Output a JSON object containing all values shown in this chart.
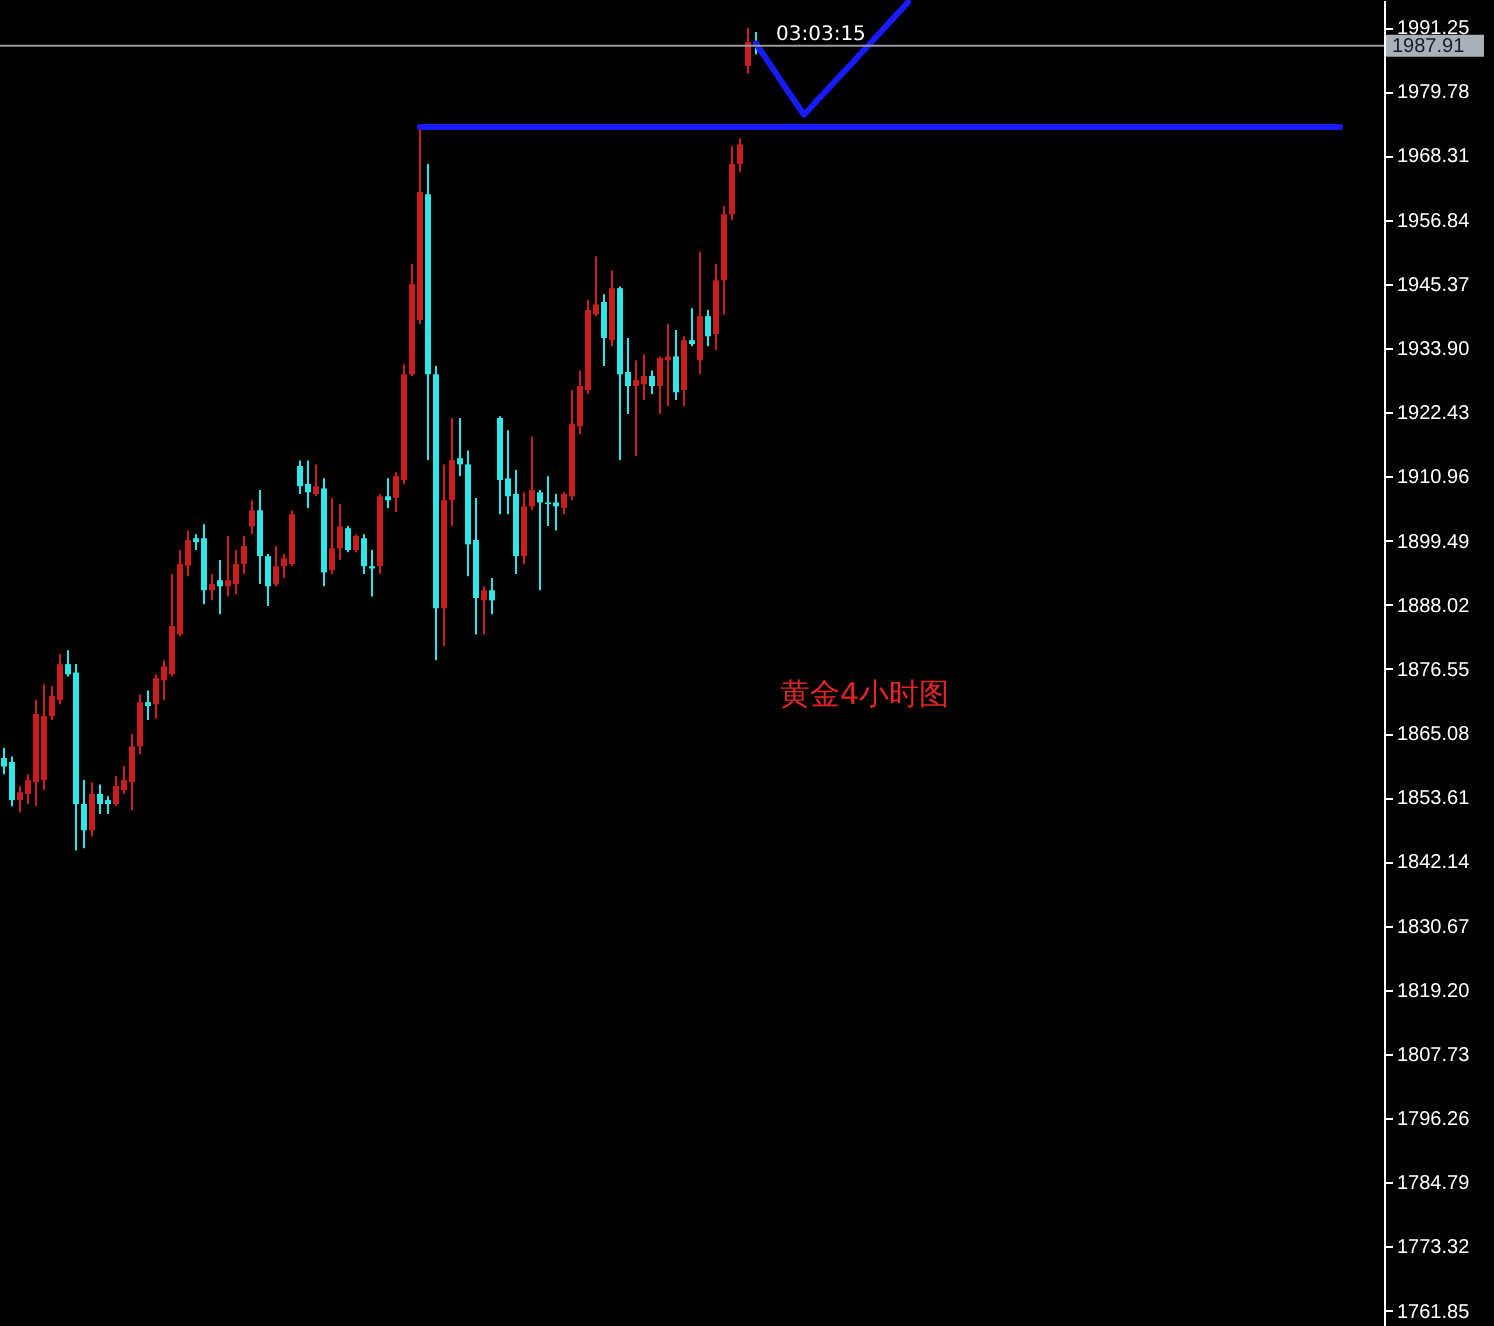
{
  "chart_data": {
    "type": "candlestick",
    "categories": [
      null,
      null,
      null,
      null,
      null,
      null,
      null,
      null,
      null,
      null,
      null,
      null,
      null,
      null,
      null,
      null,
      null,
      null,
      null,
      null,
      null,
      null,
      null,
      null,
      null,
      null,
      null,
      null,
      null,
      null,
      null,
      null,
      null,
      null,
      null,
      null,
      null,
      null,
      null,
      null,
      null,
      null,
      null,
      null,
      null,
      null,
      null,
      null,
      null,
      null,
      null,
      null,
      null,
      null,
      null,
      null,
      null,
      null,
      null,
      null,
      null,
      null,
      null,
      null,
      null,
      null,
      null,
      null,
      null,
      null,
      null,
      null,
      null,
      null,
      null,
      null,
      null,
      null,
      null,
      null,
      null,
      null,
      null,
      null,
      null,
      null,
      null,
      null,
      null,
      null,
      null,
      null,
      null,
      null,
      null,
      null,
      null,
      null,
      null,
      null,
      null,
      null,
      null,
      null,
      null,
      null,
      null,
      null,
      null,
      null,
      null,
      null,
      null,
      null,
      null,
      null,
      null,
      null,
      null,
      null,
      null,
      null,
      null,
      null,
      null,
      null,
      null,
      null,
      null,
      null,
      null,
      null,
      null,
      null,
      null,
      null,
      null,
      null,
      null,
      null,
      null,
      null,
      null,
      null,
      null,
      null,
      null,
      null,
      null,
      null,
      null,
      null,
      null,
      null,
      null,
      null,
      null,
      null,
      null,
      null,
      null,
      null,
      null,
      null,
      null,
      null,
      null,
      null,
      null,
      null,
      null,
      null,
      null
    ],
    "series": [
      {
        "ohlc": [
          [
            1860.6,
            1862.4,
            1857.7,
            1859.1
          ],
          [
            1859.9,
            1860.9,
            1852.0,
            1853.1
          ],
          [
            1853.1,
            1855.6,
            1850.9,
            1854.5
          ],
          [
            1854.2,
            1857.7,
            1852.4,
            1856.7
          ],
          [
            1856.3,
            1871.0,
            1852.0,
            1868.5
          ],
          [
            1856.7,
            1873.8,
            1854.9,
            1868.1
          ],
          [
            1868.1,
            1873.5,
            1867.4,
            1871.7
          ],
          [
            1871.0,
            1879.2,
            1870.2,
            1877.4
          ],
          [
            1877.4,
            1879.9,
            1875.2,
            1875.6
          ],
          [
            1875.9,
            1877.4,
            1844.1,
            1852.4
          ],
          [
            1852.4,
            1856.7,
            1844.5,
            1847.7
          ],
          [
            1847.7,
            1856.3,
            1846.6,
            1854.2
          ],
          [
            1854.2,
            1855.9,
            1850.6,
            1852.4
          ],
          [
            1853.1,
            1853.8,
            1850.6,
            1852.4
          ],
          [
            1852.4,
            1857.4,
            1852.0,
            1855.6
          ],
          [
            1854.9,
            1859.2,
            1854.2,
            1856.7
          ],
          [
            1856.3,
            1864.9,
            1851.3,
            1862.7
          ],
          [
            1862.7,
            1872.0,
            1861.3,
            1870.6
          ],
          [
            1870.6,
            1872.7,
            1867.4,
            1869.9
          ],
          [
            1870.2,
            1875.6,
            1867.7,
            1874.9
          ],
          [
            1874.5,
            1878.1,
            1871.0,
            1877.0
          ],
          [
            1875.6,
            1893.5,
            1875.2,
            1884.2
          ],
          [
            1882.7,
            1897.8,
            1882.4,
            1895.3
          ],
          [
            1895.0,
            1901.3,
            1893.1,
            1899.6
          ],
          [
            1899.9,
            1900.6,
            1897.8,
            1899.2
          ],
          [
            1899.9,
            1902.4,
            1888.1,
            1890.6
          ],
          [
            1890.6,
            1893.5,
            1888.8,
            1891.7
          ],
          [
            1892.4,
            1896.0,
            1886.3,
            1891.3
          ],
          [
            1891.3,
            1900.3,
            1889.5,
            1892.4
          ],
          [
            1891.7,
            1897.8,
            1889.9,
            1895.3
          ],
          [
            1895.3,
            1900.3,
            1893.5,
            1898.5
          ],
          [
            1902.0,
            1906.7,
            1900.6,
            1904.9
          ],
          [
            1904.9,
            1908.5,
            1891.7,
            1896.7
          ],
          [
            1896.7,
            1897.1,
            1887.8,
            1891.3
          ],
          [
            1891.7,
            1898.5,
            1891.3,
            1894.9
          ],
          [
            1894.9,
            1897.1,
            1892.8,
            1896.3
          ],
          [
            1895.3,
            1904.9,
            1894.9,
            1904.2
          ],
          [
            1912.8,
            1913.8,
            1907.8,
            1909.2
          ],
          [
            1909.6,
            1913.8,
            1905.3,
            1908.1
          ],
          [
            1907.8,
            1913.1,
            1907.4,
            1909.2
          ],
          [
            1908.8,
            1910.6,
            1891.3,
            1893.8
          ],
          [
            1894.2,
            1907.1,
            1893.5,
            1898.1
          ],
          [
            1898.1,
            1906.0,
            1896.0,
            1902.0
          ],
          [
            1901.7,
            1902.1,
            1897.4,
            1897.8
          ],
          [
            1897.8,
            1900.6,
            1897.4,
            1900.3
          ],
          [
            1899.9,
            1900.6,
            1893.5,
            1894.9
          ],
          [
            1894.9,
            1897.8,
            1889.5,
            1894.5
          ],
          [
            1894.9,
            1907.8,
            1893.5,
            1907.4
          ],
          [
            1907.4,
            1910.6,
            1905.3,
            1906.7
          ],
          [
            1907.1,
            1911.7,
            1904.6,
            1911.0
          ],
          [
            1910.3,
            1931.0,
            1909.6,
            1929.2
          ],
          [
            1929.2,
            1948.9,
            1928.9,
            1945.3
          ],
          [
            1938.9,
            1973.4,
            1938.2,
            1961.8
          ],
          [
            1961.4,
            1966.8,
            1913.9,
            1929.2
          ],
          [
            1929.2,
            1930.7,
            1878.1,
            1887.4
          ],
          [
            1887.4,
            1913.1,
            1880.6,
            1906.7
          ],
          [
            1906.7,
            1921.4,
            1902.1,
            1913.9
          ],
          [
            1914.2,
            1921.4,
            1911.0,
            1913.1
          ],
          [
            1913.1,
            1915.6,
            1893.1,
            1898.8
          ],
          [
            1899.6,
            1907.1,
            1882.7,
            1889.2
          ],
          [
            1888.8,
            1891.3,
            1882.7,
            1890.6
          ],
          [
            1890.6,
            1892.8,
            1886.3,
            1888.8
          ],
          [
            1921.4,
            1921.7,
            1904.2,
            1910.3
          ],
          [
            1910.6,
            1919.2,
            1904.2,
            1907.4
          ],
          [
            1907.8,
            1912.1,
            1893.5,
            1896.7
          ],
          [
            1896.7,
            1908.1,
            1895.3,
            1905.6
          ],
          [
            1905.6,
            1918.1,
            1904.9,
            1908.5
          ],
          [
            1908.1,
            1908.5,
            1890.6,
            1906.3
          ],
          [
            1906.3,
            1911.0,
            1902.1,
            1906.0
          ],
          [
            1906.3,
            1907.8,
            1901.3,
            1905.6
          ],
          [
            1905.3,
            1908.1,
            1904.2,
            1907.8
          ],
          [
            1907.4,
            1926.4,
            1906.7,
            1920.3
          ],
          [
            1919.9,
            1929.9,
            1918.5,
            1927.1
          ],
          [
            1926.4,
            1942.5,
            1925.7,
            1940.7
          ],
          [
            1939.9,
            1950.3,
            1939.6,
            1941.7
          ],
          [
            1942.1,
            1943.5,
            1930.7,
            1935.7
          ],
          [
            1935.3,
            1947.8,
            1934.2,
            1944.6
          ],
          [
            1944.6,
            1944.9,
            1913.9,
            1929.2
          ],
          [
            1929.6,
            1935.7,
            1922.1,
            1927.1
          ],
          [
            1927.1,
            1931.7,
            1914.6,
            1928.2
          ],
          [
            1927.4,
            1932.8,
            1924.6,
            1928.9
          ],
          [
            1928.9,
            1929.9,
            1925.7,
            1927.1
          ],
          [
            1927.1,
            1932.4,
            1922.1,
            1932.1
          ],
          [
            1931.7,
            1938.2,
            1923.5,
            1932.4
          ],
          [
            1932.4,
            1937.1,
            1924.6,
            1926.0
          ],
          [
            1926.4,
            1936.0,
            1923.5,
            1935.3
          ],
          [
            1935.3,
            1941.0,
            1934.2,
            1934.6
          ],
          [
            1931.7,
            1951.1,
            1929.2,
            1939.6
          ],
          [
            1939.6,
            1940.7,
            1934.2,
            1936.0
          ],
          [
            1936.4,
            1948.9,
            1933.5,
            1946.0
          ],
          [
            1946.0,
            1959.3,
            1939.9,
            1957.8
          ],
          [
            1957.8,
            1970.0,
            1956.8,
            1966.8
          ],
          [
            1966.8,
            1971.4,
            1965.3,
            1970.3
          ],
          [
            1984.3,
            1991.1,
            1982.9,
            1988.6
          ],
          [
            1988.6,
            1990.4,
            1986.4,
            1987.91
          ],
          null,
          null,
          null,
          null,
          null,
          null,
          null,
          null,
          null,
          null,
          null,
          null,
          null,
          null,
          null,
          null,
          null,
          null,
          null,
          null,
          null,
          null,
          null,
          null,
          null,
          null,
          null,
          null,
          null,
          null,
          null,
          null,
          null,
          null,
          null,
          null,
          null,
          null,
          null,
          null,
          null,
          null,
          null,
          null,
          null,
          null,
          null,
          null,
          null,
          null,
          null,
          null,
          null,
          null,
          null,
          null,
          null,
          null,
          null,
          null,
          null,
          null,
          null,
          null,
          null,
          null,
          null,
          null,
          null,
          null,
          null,
          null,
          null,
          null,
          null,
          null,
          null,
          null
        ],
        "colors": [
          "#2ee8e8",
          "#2ee8e8",
          "#c81e1e",
          "#c81e1e",
          "#c81e1e",
          "#c81e1e",
          "#c81e1e",
          "#c81e1e",
          "#2ee8e8",
          "#2ee8e8",
          "#2ee8e8",
          "#c81e1e",
          "#2ee8e8",
          "#2ee8e8",
          "#c81e1e",
          "#c81e1e",
          "#c81e1e",
          "#c81e1e",
          "#2ee8e8",
          "#c81e1e",
          "#c81e1e",
          "#c81e1e",
          "#c81e1e",
          "#c81e1e",
          "#2ee8e8",
          "#2ee8e8",
          "#c81e1e",
          "#2ee8e8",
          "#c81e1e",
          "#c81e1e",
          "#c81e1e",
          "#c81e1e",
          "#2ee8e8",
          "#2ee8e8",
          "#c81e1e",
          "#c81e1e",
          "#c81e1e",
          "#2ee8e8",
          "#2ee8e8",
          "#c81e1e",
          "#2ee8e8",
          "#c81e1e",
          "#c81e1e",
          "#2ee8e8",
          "#c81e1e",
          "#2ee8e8",
          "#2ee8e8",
          "#c81e1e",
          "#2ee8e8",
          "#c81e1e",
          "#c81e1e",
          "#c81e1e",
          "#c81e1e",
          "#2ee8e8",
          "#2ee8e8",
          "#c81e1e",
          "#c81e1e",
          "#2ee8e8",
          "#2ee8e8",
          "#2ee8e8",
          "#c81e1e",
          "#2ee8e8",
          "#2ee8e8",
          "#2ee8e8",
          "#2ee8e8",
          "#c81e1e",
          "#c81e1e",
          "#2ee8e8",
          "#2ee8e8",
          "#2ee8e8",
          "#c81e1e",
          "#c81e1e",
          "#c81e1e",
          "#c81e1e",
          "#c81e1e",
          "#2ee8e8",
          "#c81e1e",
          "#2ee8e8",
          "#2ee8e8",
          "#c81e1e",
          "#c81e1e",
          "#2ee8e8",
          "#c81e1e",
          "#c81e1e",
          "#2ee8e8",
          "#c81e1e",
          "#2ee8e8",
          "#c81e1e",
          "#2ee8e8",
          "#c81e1e",
          "#c81e1e",
          "#c81e1e",
          "#c81e1e",
          "#c81e1e",
          "#2ee8e8",
          null,
          null,
          null,
          null,
          null,
          null,
          null,
          null,
          null,
          null,
          null,
          null,
          null,
          null,
          null,
          null,
          null,
          null,
          null,
          null,
          null,
          null,
          null,
          null,
          null,
          null,
          null,
          null,
          null,
          null,
          null,
          null,
          null,
          null,
          null,
          null,
          null,
          null,
          null,
          null,
          null,
          null,
          null,
          null,
          null,
          null,
          null,
          null,
          null,
          null,
          null,
          null,
          null,
          null,
          null,
          null,
          null,
          null,
          null,
          null,
          null,
          null,
          null,
          null,
          null,
          null,
          null,
          null,
          null,
          null,
          null,
          null,
          null,
          null,
          null,
          null,
          null,
          null
        ]
      },
      {
        "type": "line",
        "color": "#1a1aff",
        "values": [
          null,
          null,
          null,
          null,
          null,
          null,
          null,
          null,
          null,
          null,
          null,
          null,
          null,
          null,
          null,
          null,
          null,
          null,
          null,
          null,
          null,
          null,
          null,
          null,
          null,
          null,
          null,
          null,
          null,
          null,
          null,
          null,
          null,
          null,
          null,
          null,
          null,
          null,
          null,
          null,
          null,
          null,
          null,
          null,
          null,
          null,
          null,
          null,
          null,
          null,
          null,
          null,
          1973.4,
          1973.4,
          1973.4,
          1973.4,
          1973.4,
          1973.4,
          1973.4,
          1973.4,
          1973.4,
          1973.4,
          1973.4,
          1973.4,
          1973.4,
          1973.4,
          1973.4,
          1973.4,
          1973.4,
          1973.4,
          1973.4,
          1973.4,
          1973.4,
          1973.4,
          1973.4,
          1973.4,
          1973.4,
          1973.4,
          1973.4,
          1973.4,
          1973.4,
          1973.4,
          1973.4,
          1973.4,
          1973.4,
          1973.4,
          1973.4,
          1973.4,
          1973.4,
          1973.4,
          1973.4,
          1973.4,
          1973.4,
          1973.4,
          1973.4,
          1973.4,
          1973.4,
          1973.4,
          1973.4,
          1973.4,
          1973.4,
          1973.4,
          1973.4,
          1973.4,
          1973.4,
          1973.4,
          1973.4,
          1973.4,
          1973.4,
          1973.4,
          1973.4,
          1973.4,
          1973.4,
          1973.4,
          1973.4,
          1973.4,
          1973.4,
          1973.4,
          1973.4,
          1973.4,
          1973.4,
          1973.4,
          1973.4,
          1973.4,
          1973.4,
          1973.4,
          1973.4,
          1973.4,
          1973.4,
          1973.4,
          1973.4,
          1973.4,
          1973.4,
          1973.4,
          1973.4,
          1973.4,
          1973.4,
          1973.4,
          1973.4,
          1973.4,
          1973.4,
          1973.4,
          1973.4,
          1973.4,
          1973.4,
          1973.4,
          1973.4,
          1973.4,
          1973.4,
          1973.4,
          1973.4,
          1973.4,
          1973.4,
          1973.4,
          1973.4,
          1973.4,
          1973.4,
          1973.4,
          1973.4,
          1973.4,
          1973.4,
          1973.4,
          1973.4,
          1973.4,
          1973.4,
          1973.4,
          1973.4,
          1973.4,
          null,
          null,
          null,
          null,
          null
        ]
      },
      {
        "type": "line",
        "color": "#1a1aff",
        "values": [
          null,
          null,
          null,
          null,
          null,
          null,
          null,
          null,
          null,
          null,
          null,
          null,
          null,
          null,
          null,
          null,
          null,
          null,
          null,
          null,
          null,
          null,
          null,
          null,
          null,
          null,
          null,
          null,
          null,
          null,
          null,
          null,
          null,
          null,
          null,
          null,
          null,
          null,
          null,
          null,
          null,
          null,
          null,
          null,
          null,
          null,
          null,
          null,
          null,
          null,
          null,
          null,
          null,
          null,
          null,
          null,
          null,
          null,
          null,
          null,
          null,
          null,
          null,
          null,
          null,
          null,
          null,
          null,
          null,
          null,
          null,
          null,
          null,
          null,
          null,
          null,
          null,
          null,
          null,
          null,
          null,
          null,
          null,
          null,
          null,
          null,
          null,
          null,
          null,
          null,
          null,
          null,
          null,
          null,
          1988.3,
          1986.2,
          1984.1,
          1981.9,
          1979.8,
          1977.7,
          1975.6,
          1977.1,
          1978.7,
          1980.2,
          1981.8,
          1983.3,
          1984.8,
          1986.4,
          1987.9,
          1989.5,
          1991.0,
          1992.6,
          1994.1,
          1995.7,
          null,
          null,
          null,
          null,
          null,
          null,
          null,
          null,
          null,
          null,
          null,
          null,
          null,
          null,
          null,
          null,
          null,
          null,
          null,
          null,
          null,
          null,
          null,
          null,
          null,
          null,
          null,
          null,
          null,
          null,
          null,
          null,
          null,
          null,
          null,
          null,
          null,
          null,
          null,
          null,
          null,
          null,
          null,
          null,
          null,
          null,
          null,
          null,
          null,
          null,
          null,
          null,
          null,
          null,
          null,
          null,
          null,
          null,
          null
        ]
      }
    ],
    "ylim": [
      1759.1,
      1996.1
    ],
    "yticks": [
      1991.25,
      1979.78,
      1968.31,
      1956.84,
      1945.37,
      {
        "value": 1933.9,
        "label": "1933.90"
      },
      1922.43,
      1910.96,
      1899.49,
      1888.02,
      1876.55,
      1865.08,
      1853.61,
      1842.14,
      1830.67,
      {
        "value": 1819.2,
        "label": "1819.20"
      },
      1807.73,
      1796.26,
      1784.79,
      1773.32,
      1761.85
    ],
    "ref_lines": [
      {
        "axis": "y",
        "value": 1987.91,
        "label": "1987.91",
        "color": "#9a9a9a"
      }
    ],
    "annotations": [
      "03:03:15",
      "黄金4小时图"
    ]
  }
}
